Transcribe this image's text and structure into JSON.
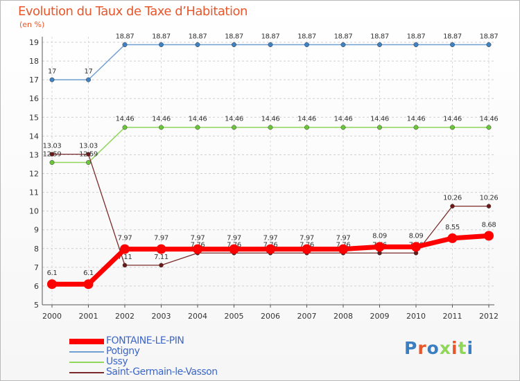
{
  "chart_data": {
    "type": "line",
    "title": "Evolution du Taux de Taxe d’Habitation",
    "ylabel": "(en %)",
    "xlabel": "",
    "categories": [
      "2000",
      "2001",
      "2002",
      "2003",
      "2004",
      "2005",
      "2006",
      "2007",
      "2008",
      "2009",
      "2010",
      "2011",
      "2012"
    ],
    "ylim": [
      5,
      19
    ],
    "yticks": [
      5,
      6,
      7,
      8,
      9,
      10,
      11,
      12,
      13,
      14,
      15,
      16,
      17,
      18,
      19
    ],
    "grid": true,
    "legend_position": "bottom-left",
    "series": [
      {
        "name": "Potigny",
        "color": "#6f9ed1",
        "point_color": "#3f82c4",
        "values": [
          17,
          17,
          18.87,
          18.87,
          18.87,
          18.87,
          18.87,
          18.87,
          18.87,
          18.87,
          18.87,
          18.87,
          18.87
        ],
        "labels": [
          "17",
          "17",
          "18.87",
          "18.87",
          "18.87",
          "18.87",
          "18.87",
          "18.87",
          "18.87",
          "18.87",
          "18.87",
          "18.87",
          "18.87"
        ]
      },
      {
        "name": "Ussy",
        "color": "#8fd65a",
        "point_color": "#6cc63a",
        "values": [
          12.59,
          12.59,
          14.46,
          14.46,
          14.46,
          14.46,
          14.46,
          14.46,
          14.46,
          14.46,
          14.46,
          14.46,
          14.46
        ],
        "labels": [
          "12.59",
          "12.59",
          "14.46",
          "14.46",
          "14.46",
          "14.46",
          "14.46",
          "14.46",
          "14.46",
          "14.46",
          "14.46",
          "14.46",
          "14.46"
        ]
      },
      {
        "name": "Saint-Germain-le-Vasson",
        "color": "#7a2a2a",
        "point_color": "#6b1a1a",
        "values": [
          13.03,
          13.03,
          7.11,
          7.11,
          7.76,
          7.76,
          7.76,
          7.76,
          7.76,
          7.76,
          7.76,
          10.26,
          10.26
        ],
        "labels": [
          "13.03",
          "13.03",
          "7.11",
          "7.11",
          "7.76",
          "7.76",
          "7.76",
          "7.76",
          "7.76",
          "7.76",
          "7.76",
          "10.26",
          "10.26"
        ]
      },
      {
        "name": "FONTAINE-LE-PIN",
        "color": "#ff0000",
        "point_color": "#ff0000",
        "values": [
          6.1,
          6.1,
          7.97,
          7.97,
          7.97,
          7.97,
          7.97,
          7.97,
          7.97,
          8.09,
          8.09,
          8.55,
          8.68
        ],
        "labels": [
          "6.1",
          "6.1",
          "7.97",
          "7.97",
          "7.97",
          "7.97",
          "7.97",
          "7.97",
          "7.97",
          "8.09",
          "8.09",
          "8.55",
          "8.68"
        ]
      }
    ],
    "legend": [
      "FONTAINE-LE-PIN",
      "Potigny",
      "Ussy",
      "Saint-Germain-le-Vasson"
    ]
  },
  "logo": {
    "text": "Proxiti",
    "colors": [
      "#3a7fc4",
      "#e8572c",
      "#3a7fc4",
      "#8fd65a",
      "#e8572c",
      "#8fd65a",
      "#3a7fc4"
    ]
  }
}
